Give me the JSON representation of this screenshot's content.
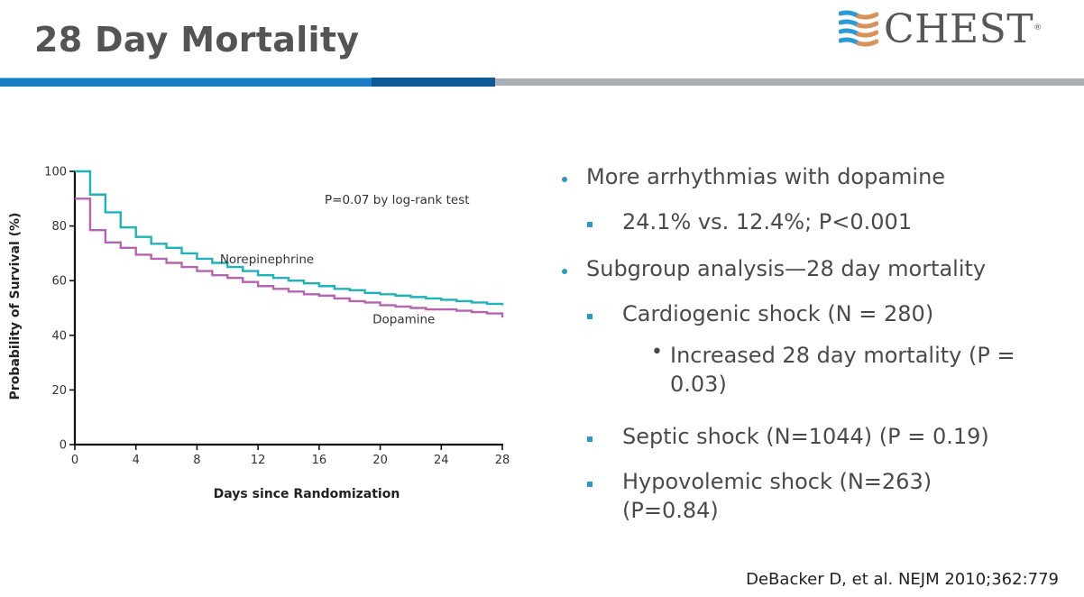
{
  "slide": {
    "title": "28 Day Mortality",
    "logo": {
      "name": "CHEST",
      "registered": "®",
      "mark_colors": [
        "#2a9bd6",
        "#d9925a"
      ]
    },
    "accent_bar_colors": {
      "light_blue": "#1a7dc4",
      "dark_blue": "#0e5a97",
      "gray": "#a9b0b6"
    }
  },
  "bullets": [
    {
      "level": 1,
      "text": "More arrhythmias with dopamine"
    },
    {
      "level": 2,
      "text": "24.1% vs. 12.4%; P<0.001"
    },
    {
      "level": 1,
      "text": "Subgroup analysis—28 day mortality"
    },
    {
      "level": 2,
      "text": "Cardiogenic shock (N = 280)"
    },
    {
      "level": 3,
      "text": "Increased 28 day mortality (P =",
      "text_cont": "0.03)"
    },
    {
      "level": 2,
      "text": "Septic shock (N=1044) (P = 0.19)"
    },
    {
      "level": 2,
      "text": "Hypovolemic shock (N=263)",
      "text_cont": "(P=0.84)"
    }
  ],
  "citation": "DeBacker D, et al. NEJM 2010;362:779",
  "chart_data": {
    "type": "line",
    "subtype": "kaplan-meier-step",
    "title": "",
    "xlabel": "Days since Randomization",
    "ylabel": "Probability of Survival (%)",
    "xlim": [
      0,
      28
    ],
    "ylim": [
      0,
      100
    ],
    "xticks": [
      0,
      4,
      8,
      12,
      16,
      20,
      24,
      28
    ],
    "yticks": [
      0,
      20,
      40,
      60,
      80,
      100
    ],
    "grid": false,
    "annotation": "P=0.07 by log-rank test",
    "series": [
      {
        "name": "Norepinephrine",
        "color": "#1fb3b8",
        "x": [
          0,
          1,
          2,
          3,
          4,
          5,
          6,
          7,
          8,
          9,
          10,
          11,
          12,
          13,
          14,
          15,
          16,
          17,
          18,
          19,
          20,
          21,
          22,
          23,
          24,
          25,
          26,
          27,
          28
        ],
        "y": [
          100,
          91.5,
          85,
          79.5,
          76,
          73.5,
          72,
          70,
          68,
          66.5,
          65,
          63.5,
          62,
          61,
          60,
          59,
          58,
          57,
          56.5,
          55.5,
          55,
          54.5,
          54,
          53.5,
          53,
          52.5,
          52,
          51.5,
          51
        ]
      },
      {
        "name": "Dopamine",
        "color": "#b565b0",
        "x": [
          0,
          1,
          2,
          3,
          4,
          5,
          6,
          7,
          8,
          9,
          10,
          11,
          12,
          13,
          14,
          15,
          16,
          17,
          18,
          19,
          20,
          21,
          22,
          23,
          24,
          25,
          26,
          27,
          28
        ],
        "y": [
          90,
          78.5,
          74,
          72,
          69.5,
          68,
          66.5,
          65,
          63.5,
          62,
          61,
          59.5,
          58,
          57,
          56,
          55,
          54.5,
          53.5,
          52.5,
          52,
          51,
          50.5,
          50,
          49.5,
          49.5,
          49,
          48.5,
          48,
          46.5
        ]
      }
    ],
    "series_labels": [
      {
        "text": "Norepinephrine",
        "x": 9.5,
        "y": 68
      },
      {
        "text": "Dopamine",
        "x": 19.5,
        "y": 46
      }
    ]
  }
}
